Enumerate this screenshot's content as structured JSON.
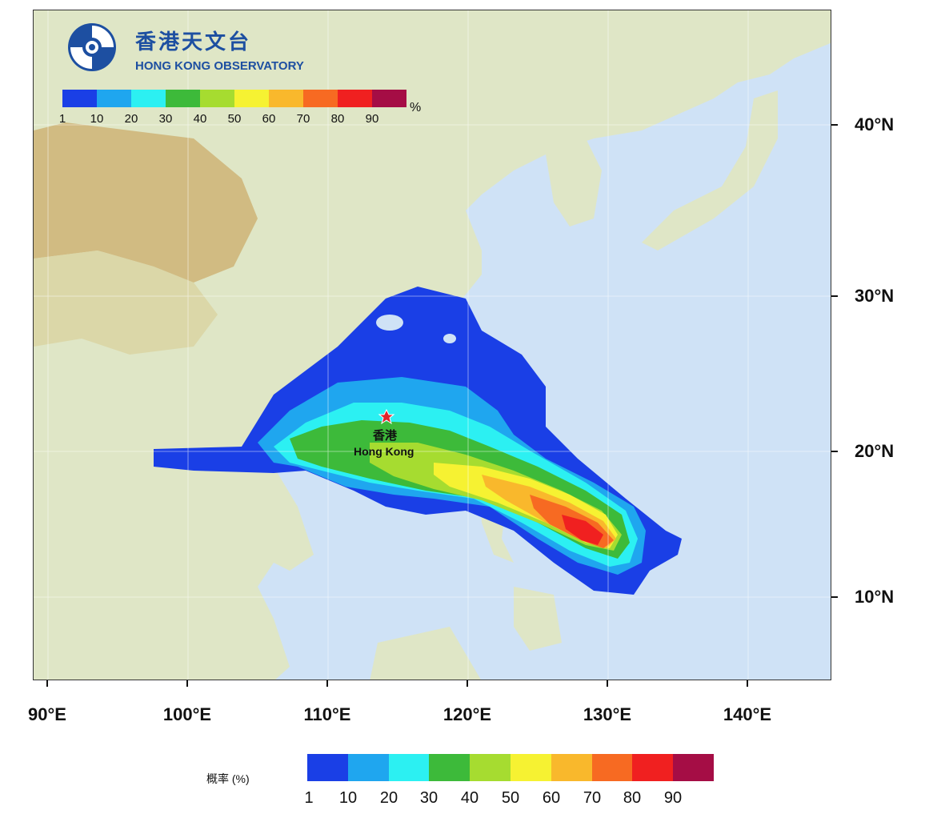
{
  "logo": {
    "name_cn": "香港天文台",
    "name_en": "HONG KONG OBSERVATORY"
  },
  "map": {
    "lon_labels": [
      "90°E",
      "100°E",
      "110°E",
      "120°E",
      "130°E",
      "140°E"
    ],
    "lat_labels": [
      "40°N",
      "30°N",
      "20°N",
      "10°N"
    ],
    "marker": {
      "icon": "red-star-icon",
      "label_cn": "香港",
      "label_en": "Hong Kong"
    },
    "colors": {
      "ocean": "#cfe2f6",
      "land": "#dfe6c6",
      "plateau": "#cdb070",
      "marker": "#e1232b"
    }
  },
  "legend_inset": {
    "unit": "%",
    "tick_labels": [
      "1",
      "10",
      "20",
      "30",
      "40",
      "50",
      "60",
      "70",
      "80",
      "90"
    ]
  },
  "legend_bottom": {
    "title": "概率 (%)",
    "tick_labels": [
      "1",
      "10",
      "20",
      "30",
      "40",
      "50",
      "60",
      "70",
      "80",
      "90"
    ]
  },
  "probability_colors": [
    "#1a3fe6",
    "#1fa6ef",
    "#2cf0f2",
    "#3dba3a",
    "#a6dc30",
    "#f6f232",
    "#f9b82c",
    "#f76a22",
    "#f02020",
    "#a50d45"
  ]
}
